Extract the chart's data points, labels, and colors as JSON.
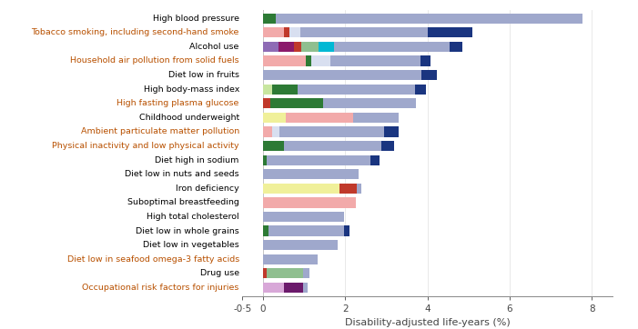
{
  "risks": [
    "High blood pressure",
    "Tobacco smoking, including second-hand smoke",
    "Alcohol use",
    "Household air pollution from solid fuels",
    "Diet low in fruits",
    "High body-mass index",
    "High fasting plasma glucose",
    "Childhood underweight",
    "Ambient particulate matter pollution",
    "Physical inactivity and low physical activity",
    "Diet high in sodium",
    "Diet low in nuts and seeds",
    "Iron deficiency",
    "Suboptimal breastfeeding",
    "High total cholesterol",
    "Diet low in whole grains",
    "Diet low in vegetables",
    "Diet low in seafood omega-3 fatty acids",
    "Drug use",
    "Occupational risk factors for injuries"
  ],
  "label_colors": [
    "#000000",
    "#b85000",
    "#000000",
    "#b85000",
    "#000000",
    "#000000",
    "#b85000",
    "#000000",
    "#b85000",
    "#b85000",
    "#000000",
    "#000000",
    "#000000",
    "#000000",
    "#000000",
    "#000000",
    "#000000",
    "#b85000",
    "#000000",
    "#b85000"
  ],
  "segments": [
    [
      {
        "val": 0.32,
        "color": "#2d7a35"
      },
      {
        "val": 7.45,
        "color": "#9fa8cc"
      }
    ],
    [
      {
        "val": 0.52,
        "color": "#f2aaaa"
      },
      {
        "val": 0.13,
        "color": "#c0392b"
      },
      {
        "val": 0.25,
        "color": "#d8dff0"
      },
      {
        "val": 3.1,
        "color": "#9fa8cc"
      },
      {
        "val": 1.1,
        "color": "#1a3580"
      }
    ],
    [
      {
        "val": 0.38,
        "color": "#8e6bb5"
      },
      {
        "val": 0.38,
        "color": "#8b1a6b"
      },
      {
        "val": 0.17,
        "color": "#c0392b"
      },
      {
        "val": 0.42,
        "color": "#8fbf8f"
      },
      {
        "val": 0.38,
        "color": "#00b8d4"
      },
      {
        "val": 2.8,
        "color": "#9fa8cc"
      },
      {
        "val": 0.32,
        "color": "#1a3580"
      }
    ],
    [
      {
        "val": 1.05,
        "color": "#f2aaaa"
      },
      {
        "val": 0.13,
        "color": "#2d7a35"
      },
      {
        "val": 0.45,
        "color": "#d8dff0"
      },
      {
        "val": 2.2,
        "color": "#9fa8cc"
      },
      {
        "val": 0.25,
        "color": "#1a3580"
      }
    ],
    [
      {
        "val": 3.85,
        "color": "#9fa8cc"
      },
      {
        "val": 0.38,
        "color": "#1a3580"
      }
    ],
    [
      {
        "val": 0.22,
        "color": "#c8e6a0"
      },
      {
        "val": 0.62,
        "color": "#2d7a35"
      },
      {
        "val": 2.85,
        "color": "#9fa8cc"
      },
      {
        "val": 0.27,
        "color": "#1a3580"
      }
    ],
    [
      {
        "val": 0.18,
        "color": "#c0392b"
      },
      {
        "val": 1.28,
        "color": "#2d7a35"
      },
      {
        "val": 2.25,
        "color": "#9fa8cc"
      }
    ],
    [
      {
        "val": 0.55,
        "color": "#f0f09a"
      },
      {
        "val": 1.65,
        "color": "#f2aaaa"
      },
      {
        "val": 1.1,
        "color": "#9fa8cc"
      }
    ],
    [
      {
        "val": 0.22,
        "color": "#f2aaaa"
      },
      {
        "val": 0.18,
        "color": "#d8dff0"
      },
      {
        "val": 2.55,
        "color": "#9fa8cc"
      },
      {
        "val": 0.35,
        "color": "#1a3580"
      }
    ],
    [
      {
        "val": 0.52,
        "color": "#2d7a35"
      },
      {
        "val": 2.35,
        "color": "#9fa8cc"
      },
      {
        "val": 0.32,
        "color": "#1a3580"
      }
    ],
    [
      {
        "val": 0.1,
        "color": "#2d7a35"
      },
      {
        "val": 2.52,
        "color": "#9fa8cc"
      },
      {
        "val": 0.22,
        "color": "#1a3580"
      }
    ],
    [
      {
        "val": 2.32,
        "color": "#9fa8cc"
      }
    ],
    [
      {
        "val": 1.85,
        "color": "#f0f09a"
      },
      {
        "val": 0.42,
        "color": "#c0392b"
      },
      {
        "val": 0.12,
        "color": "#9fa8cc"
      }
    ],
    [
      {
        "val": 2.25,
        "color": "#f2aaaa"
      }
    ],
    [
      {
        "val": 1.98,
        "color": "#9fa8cc"
      }
    ],
    [
      {
        "val": 0.13,
        "color": "#2d7a35"
      },
      {
        "val": 1.85,
        "color": "#9fa8cc"
      },
      {
        "val": 0.13,
        "color": "#1a3580"
      }
    ],
    [
      {
        "val": 1.82,
        "color": "#9fa8cc"
      }
    ],
    [
      {
        "val": 1.32,
        "color": "#9fa8cc"
      }
    ],
    [
      {
        "val": 0.1,
        "color": "#c0392b"
      },
      {
        "val": 0.88,
        "color": "#8fbf8f"
      },
      {
        "val": 0.15,
        "color": "#9fa8cc"
      }
    ],
    [
      {
        "val": 0.52,
        "color": "#d8a8d8"
      },
      {
        "val": 0.45,
        "color": "#6b1a6b"
      },
      {
        "val": 0.12,
        "color": "#9fa8cc"
      }
    ]
  ],
  "xlim": [
    -0.5,
    8.5
  ],
  "xticks": [
    0,
    2,
    4,
    6,
    8
  ],
  "xlabel": "Disability-adjusted life-years (%)",
  "background_color": "#ffffff",
  "bar_height": 0.72
}
